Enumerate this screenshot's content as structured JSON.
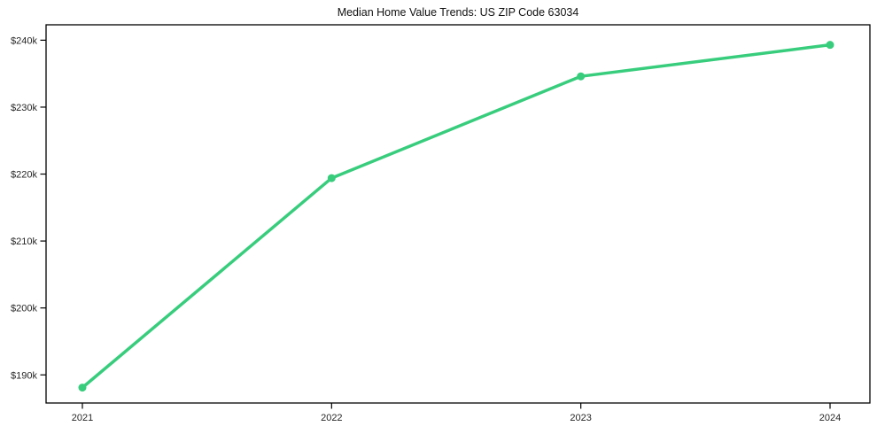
{
  "chart_data": {
    "type": "line",
    "title": "Median Home Value Trends: US ZIP Code 63034",
    "categories": [
      "2021",
      "2022",
      "2023",
      "2024"
    ],
    "series": [
      {
        "name": "Median Home Value",
        "values": [
          188100,
          219400,
          234600,
          239300
        ],
        "color": "#38cd7d"
      }
    ],
    "y_tick_values": [
      190000,
      200000,
      210000,
      220000,
      230000,
      240000
    ],
    "y_tick_labels": [
      "$190k",
      "$200k",
      "$210k",
      "$220k",
      "$230k",
      "$240k"
    ],
    "ylim": [
      185800,
      242300
    ],
    "xlabel": "",
    "ylabel": "",
    "grid": false,
    "legend": "none",
    "marker": "circle",
    "axis_color": "#000000",
    "text_color": "#262626",
    "background_color": "#ffffff"
  }
}
